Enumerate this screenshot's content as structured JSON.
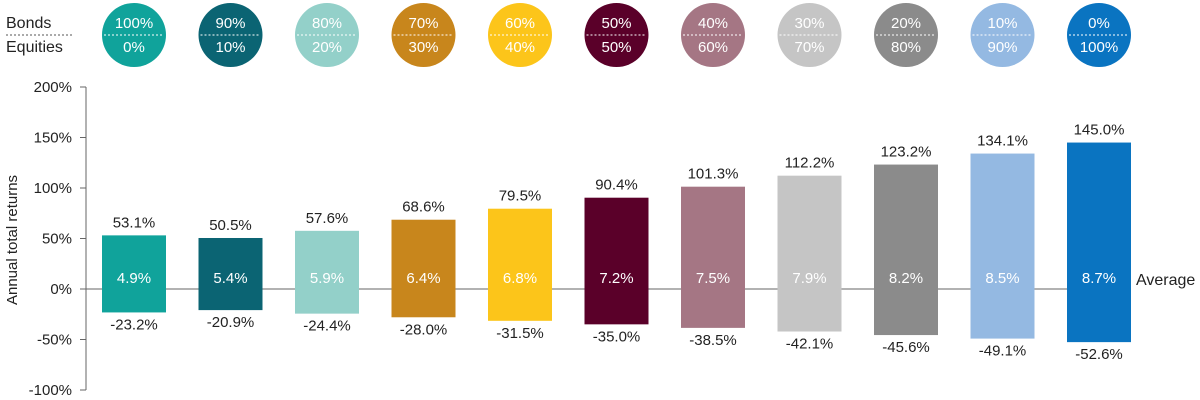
{
  "header": {
    "bonds_label": "Bonds",
    "equities_label": "Equities"
  },
  "allocations": [
    {
      "bonds": "100%",
      "equities": "0%",
      "color": "#10A39B"
    },
    {
      "bonds": "90%",
      "equities": "10%",
      "color": "#0B6473"
    },
    {
      "bonds": "80%",
      "equities": "20%",
      "color": "#93D0C9"
    },
    {
      "bonds": "70%",
      "equities": "30%",
      "color": "#C8861C"
    },
    {
      "bonds": "60%",
      "equities": "40%",
      "color": "#FCC51A"
    },
    {
      "bonds": "50%",
      "equities": "50%",
      "color": "#5A0029"
    },
    {
      "bonds": "40%",
      "equities": "60%",
      "color": "#A57684"
    },
    {
      "bonds": "30%",
      "equities": "70%",
      "color": "#C5C5C5"
    },
    {
      "bonds": "20%",
      "equities": "80%",
      "color": "#8B8B8B"
    },
    {
      "bonds": "10%",
      "equities": "90%",
      "color": "#94B9E2"
    },
    {
      "bonds": "0%",
      "equities": "100%",
      "color": "#0A74C1"
    }
  ],
  "chart_data": {
    "type": "bar",
    "title": "",
    "xlabel": "",
    "ylabel": "Annual total returns",
    "ylim": [
      -100,
      200
    ],
    "yticks": [
      "-100%",
      "-50%",
      "0%",
      "50%",
      "100%",
      "150%",
      "200%"
    ],
    "ytick_values": [
      -100,
      -50,
      0,
      50,
      100,
      150,
      200
    ],
    "categories": [
      "100%/0%",
      "90%/10%",
      "80%/20%",
      "70%/30%",
      "60%/40%",
      "50%/50%",
      "40%/60%",
      "30%/70%",
      "20%/80%",
      "10%/90%",
      "0%/100%"
    ],
    "series": [
      {
        "name": "",
        "values": [
          53.1,
          50.5,
          57.6,
          68.6,
          79.5,
          90.4,
          101.3,
          112.2,
          123.2,
          134.1,
          145.0
        ]
      },
      {
        "name": "",
        "values": [
          -23.2,
          -20.9,
          -24.4,
          -28.0,
          -31.5,
          -35.0,
          -38.5,
          -42.1,
          -45.6,
          -49.1,
          -52.6
        ]
      },
      {
        "name": "Average",
        "values": [
          4.9,
          5.4,
          5.9,
          6.4,
          6.8,
          7.2,
          7.5,
          7.9,
          8.2,
          8.5,
          8.7
        ]
      }
    ],
    "max_labels": [
      "53.1%",
      "50.5%",
      "57.6%",
      "68.6%",
      "79.5%",
      "90.4%",
      "101.3%",
      "112.2%",
      "123.2%",
      "134.1%",
      "145.0%"
    ],
    "min_labels": [
      "-23.2%",
      "-20.9%",
      "-24.4%",
      "-28.0%",
      "-31.5%",
      "-35.0%",
      "-38.5%",
      "-42.1%",
      "-45.6%",
      "-49.1%",
      "-52.6%"
    ],
    "avg_labels": [
      "4.9%",
      "5.4%",
      "5.9%",
      "6.4%",
      "6.8%",
      "7.2%",
      "7.5%",
      "7.9%",
      "8.2%",
      "8.5%",
      "8.7%"
    ],
    "average_label": "Average",
    "grid": false
  }
}
